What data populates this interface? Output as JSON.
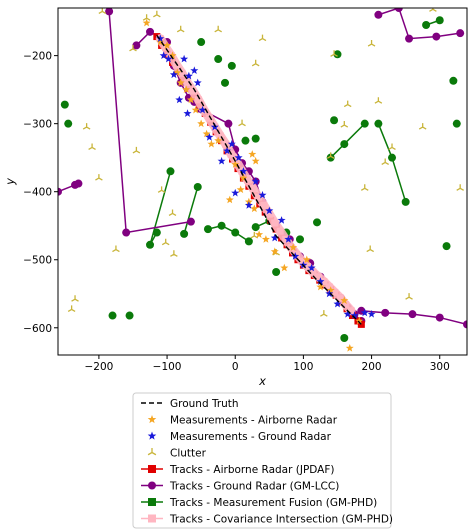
{
  "chart_data": {
    "type": "scatter",
    "title": "",
    "xlabel": "x",
    "ylabel": "y",
    "xlim": [
      -260,
      340
    ],
    "ylim": [
      -640,
      -130
    ],
    "xticks": [
      -200,
      -100,
      0,
      100,
      200,
      300
    ],
    "yticks": [
      -200,
      -300,
      -400,
      -500,
      -600
    ],
    "tick_labels_x": [
      "−200",
      "−100",
      "0",
      "100",
      "200",
      "300"
    ],
    "tick_labels_y": [
      "−200",
      "−300",
      "−400",
      "−500",
      "−600"
    ],
    "grid": false,
    "legend_position": "below",
    "legend": [
      {
        "label": "Ground Truth",
        "kind": "dashed-line",
        "color": "#000000"
      },
      {
        "label": "Measurements - Airborne Radar",
        "kind": "star",
        "color": "#f5a623"
      },
      {
        "label": "Measurements - Ground Radar",
        "kind": "star",
        "color": "#1a1adb"
      },
      {
        "label": "Clutter",
        "kind": "tri",
        "color": "#c9b53a"
      },
      {
        "label": "Tracks - Airborne Radar (JPDAF)",
        "kind": "line-square",
        "color": "#e00000"
      },
      {
        "label": "Tracks - Ground Radar (GM-LCC)",
        "kind": "line-circle",
        "color": "#800080"
      },
      {
        "label": "Tracks - Measurement Fusion (GM-PHD)",
        "kind": "line-square",
        "color": "#0a7a0a"
      },
      {
        "label": "Tracks - Covariance Intersection (GM-PHD)",
        "kind": "line-square",
        "color": "#ffb6c1"
      }
    ],
    "series": [
      {
        "name": "Ground Truth",
        "x": [
          -115,
          -60,
          0,
          60,
          120,
          185
        ],
        "y": [
          -170,
          -250,
          -355,
          -465,
          -530,
          -595
        ]
      },
      {
        "name": "Measurements - Airborne Radar",
        "x": [
          -110,
          -100,
          -92,
          -85,
          -80,
          -72,
          -65,
          -58,
          -50,
          -42,
          -35,
          -25,
          -8,
          0,
          12,
          20,
          28,
          35,
          45,
          58,
          72,
          85,
          105,
          125,
          140,
          160,
          168,
          182,
          -130,
          25,
          30,
          8
        ],
        "y": [
          -180,
          -185,
          -200,
          -225,
          -240,
          -250,
          -265,
          -280,
          -300,
          -315,
          -330,
          -325,
          -412,
          -360,
          -380,
          -415,
          -425,
          -463,
          -470,
          -488,
          -512,
          -482,
          -500,
          -540,
          -545,
          -560,
          -630,
          -590,
          -152,
          -345,
          -355,
          -397
        ]
      },
      {
        "name": "Measurements - Ground Radar",
        "x": [
          -110,
          -105,
          -98,
          -90,
          -82,
          -75,
          -68,
          -60,
          -55,
          -48,
          -38,
          -30,
          -20,
          -12,
          -5,
          5,
          12,
          20,
          30,
          40,
          50,
          58,
          68,
          78,
          88,
          100,
          112,
          125,
          138,
          150,
          165,
          175,
          190,
          200,
          -70,
          0
        ],
        "y": [
          -175,
          -200,
          -205,
          -228,
          -265,
          -205,
          -230,
          -222,
          -240,
          -280,
          -320,
          -305,
          -355,
          -340,
          -330,
          -350,
          -370,
          -420,
          -385,
          -405,
          -428,
          -468,
          -442,
          -470,
          -495,
          -508,
          -512,
          -532,
          -550,
          -565,
          -580,
          -582,
          -578,
          -580,
          -285,
          -402
        ]
      },
      {
        "name": "Clutter",
        "x": [
          -195,
          -150,
          -130,
          -115,
          -80,
          -218,
          -210,
          -200,
          -175,
          -145,
          -108,
          -102,
          -90,
          -92,
          -235,
          -240,
          -25,
          10,
          30,
          40,
          28,
          145,
          160,
          165,
          200,
          210,
          220,
          230,
          255,
          275,
          290,
          330,
          198,
          190,
          140,
          130,
          60
        ],
        "y": [
          -135,
          -190,
          -145,
          -140,
          -162,
          -305,
          -335,
          -380,
          -485,
          -340,
          -398,
          -475,
          -492,
          -432,
          -558,
          -573,
          -162,
          -300,
          -212,
          -175,
          -465,
          -198,
          -302,
          -272,
          -183,
          -267,
          -357,
          -335,
          -555,
          -305,
          -132,
          -395,
          -485,
          -395,
          -348,
          -580,
          -490
        ]
      },
      {
        "name": "Tracks - Airborne Radar (JPDAF)",
        "x": [
          -115,
          -108,
          -100,
          -92,
          -84,
          -76,
          -68,
          -60,
          -52,
          -44,
          -36,
          -28,
          -20,
          -12,
          -4,
          4,
          12,
          20,
          28,
          36,
          44,
          52,
          60,
          68,
          76,
          84,
          92,
          100,
          108,
          116,
          124,
          132,
          140,
          148,
          156,
          164,
          172,
          180,
          185
        ],
        "y": [
          -172,
          -185,
          -198,
          -210,
          -222,
          -236,
          -248,
          -260,
          -272,
          -285,
          -298,
          -312,
          -325,
          -340,
          -352,
          -366,
          -380,
          -392,
          -406,
          -418,
          -430,
          -442,
          -455,
          -468,
          -478,
          -490,
          -500,
          -508,
          -516,
          -523,
          -530,
          -537,
          -544,
          -552,
          -562,
          -572,
          -582,
          -590,
          -595
        ]
      },
      {
        "name": "Tracks - Ground Radar (GM-LCC)",
        "x": [
          -145,
          -125,
          -100,
          -90,
          -80,
          -68,
          -60,
          -52,
          -10,
          0,
          10,
          20,
          30,
          40,
          60,
          80,
          95,
          110,
          125,
          140,
          155,
          165,
          175,
          185
        ],
        "y": [
          -185,
          -165,
          -180,
          -215,
          -240,
          -262,
          -268,
          -278,
          -300,
          -338,
          -358,
          -370,
          -385,
          -415,
          -450,
          -470,
          -495,
          -505,
          -525,
          -545,
          -556,
          -570,
          -580,
          -590
        ]
      },
      {
        "name": "Tracks - Ground Radar (GM-LCC) 2",
        "x": [
          -260,
          -235,
          -230
        ],
        "y": [
          -400,
          -390,
          -388
        ]
      },
      {
        "name": "Tracks - Ground Radar (GM-LCC) 3",
        "x": [
          185,
          220,
          260,
          300,
          340
        ],
        "y": [
          -575,
          -578,
          -580,
          -585,
          -595
        ]
      },
      {
        "name": "Tracks - Ground Radar (GM-LCC) 4",
        "x": [
          210,
          240,
          255,
          295,
          330
        ],
        "y": [
          -140,
          -130,
          -175,
          -172,
          -167
        ]
      },
      {
        "name": "Tracks - Ground Radar (GM-LCC) 5",
        "x": [
          -185,
          -160,
          -65
        ],
        "y": [
          -135,
          -460,
          -444
        ]
      },
      {
        "name": "Tracks - Measurement Fusion (GM-PHD)",
        "x": [
          -125,
          -115,
          -95,
          -75,
          -55,
          -40,
          -20,
          0,
          20,
          30,
          50,
          75,
          95,
          120,
          140,
          160,
          190,
          210,
          230,
          250,
          280,
          300,
          325,
          -250,
          -245,
          -180,
          -155,
          -50,
          -25,
          -15,
          -5,
          15,
          30,
          60,
          145,
          150,
          160,
          310,
          320
        ],
        "y": [
          -478,
          -460,
          -370,
          -462,
          -393,
          -455,
          -450,
          -460,
          -473,
          -452,
          -443,
          -460,
          -470,
          -445,
          -350,
          -330,
          -300,
          -300,
          -350,
          -415,
          -155,
          -148,
          -300,
          -272,
          -300,
          -582,
          -582,
          -180,
          -205,
          -240,
          -215,
          -325,
          -322,
          -518,
          -295,
          -198,
          -615,
          -480,
          -237
        ]
      },
      {
        "name": "Tracks - Covariance Intersection (GM-PHD)",
        "x": [
          -110,
          -102,
          -94,
          -86,
          -78,
          -70,
          -62,
          -54,
          -46,
          -38,
          -30,
          -22,
          -14,
          -6,
          2,
          10,
          18,
          26,
          34,
          42,
          50,
          58,
          66,
          74,
          82,
          90,
          98,
          106,
          114,
          122,
          130,
          138,
          146,
          154,
          162,
          170
        ],
        "y": [
          -175,
          -188,
          -200,
          -214,
          -226,
          -240,
          -252,
          -265,
          -280,
          -292,
          -305,
          -318,
          -330,
          -345,
          -356,
          -370,
          -383,
          -395,
          -408,
          -420,
          -433,
          -446,
          -458,
          -470,
          -482,
          -492,
          -502,
          -510,
          -518,
          -525,
          -532,
          -540,
          -548,
          -556,
          -566,
          -575
        ]
      }
    ]
  }
}
